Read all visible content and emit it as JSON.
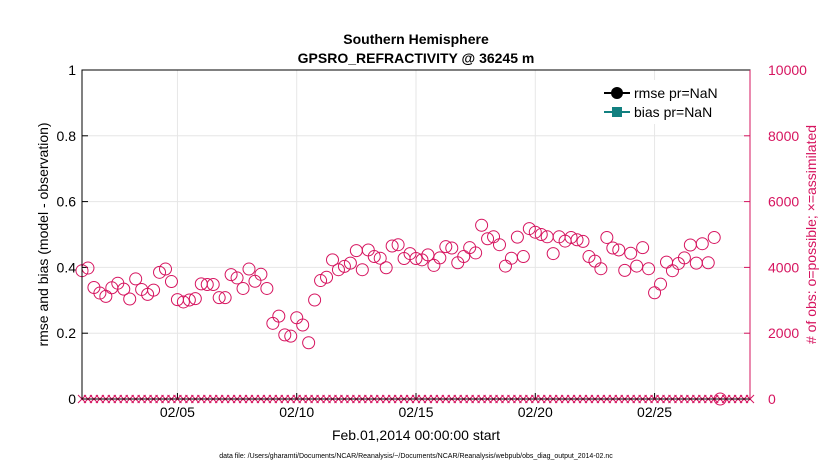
{
  "chart_data": {
    "type": "scatter",
    "title": "Southern Hemisphere",
    "subtitle": "GPSRO_REFRACTIVITY @ 36245 m",
    "xlabel": "Feb.01,2014 00:00:00 start",
    "ylabel": "rmse and bias (model - observation)",
    "ylabel_right": "# of obs: o=possible; ×=assimilated",
    "footnote": "data file: /Users/gharamti/Documents/NCAR/Reanalysis/~/Documents/NCAR/Reanalysis/webpub/obs_diag_output_2014-02.nc",
    "xlim": [
      1.0,
      29.0
    ],
    "ylim": [
      0,
      1
    ],
    "ylim_right": [
      0,
      10000
    ],
    "x_ticks": [
      {
        "value": 5,
        "label": "02/05"
      },
      {
        "value": 10,
        "label": "02/10"
      },
      {
        "value": 15,
        "label": "02/15"
      },
      {
        "value": 20,
        "label": "02/20"
      },
      {
        "value": 25,
        "label": "02/25"
      }
    ],
    "y_ticks": [
      {
        "value": 0,
        "label": "0"
      },
      {
        "value": 0.2,
        "label": "0.2"
      },
      {
        "value": 0.4,
        "label": "0.4"
      },
      {
        "value": 0.6,
        "label": "0.6"
      },
      {
        "value": 0.8,
        "label": "0.8"
      },
      {
        "value": 1,
        "label": "1"
      }
    ],
    "y_ticks_right": [
      {
        "value": 0,
        "label": "0"
      },
      {
        "value": 2000,
        "label": "2000"
      },
      {
        "value": 4000,
        "label": "4000"
      },
      {
        "value": 6000,
        "label": "6000"
      },
      {
        "value": 8000,
        "label": "8000"
      },
      {
        "value": 10000,
        "label": "10000"
      }
    ],
    "legend": [
      {
        "name": "rmse pr=NaN",
        "color": "#000000",
        "marker": "circle"
      },
      {
        "name": "bias pr=NaN",
        "color": "#128080",
        "marker": "square"
      }
    ],
    "legend_position": "top-right",
    "colors": {
      "obs": "#d6145f",
      "grid": "#e6e6e6",
      "axis": "#000000"
    },
    "possible_series": {
      "name": "possible",
      "x_start": 1.0,
      "x_step": 0.25,
      "values": [
        3900,
        3980,
        3390,
        3220,
        3120,
        3380,
        3520,
        3340,
        3040,
        3650,
        3330,
        3180,
        3310,
        3850,
        3950,
        3570,
        3020,
        2950,
        3010,
        3050,
        3500,
        3480,
        3480,
        3080,
        3080,
        3780,
        3680,
        3360,
        3950,
        3580,
        3790,
        3360,
        2300,
        2520,
        1950,
        1910,
        2470,
        2250,
        1710,
        3010,
        3600,
        3700,
        4230,
        3930,
        4030,
        4130,
        4510,
        3930,
        4530,
        4330,
        4280,
        3990,
        4650,
        4690,
        4270,
        4420,
        4270,
        4230,
        4380,
        4060,
        4290,
        4630,
        4590,
        4140,
        4330,
        4600,
        4440,
        5280,
        4870,
        4930,
        4690,
        4040,
        4280,
        4920,
        4330,
        5180,
        5070,
        5000,
        4930,
        4420,
        4930,
        4800,
        4910,
        4840,
        4790,
        4330,
        4190,
        3960,
        4910,
        4590,
        4530,
        3910,
        4430,
        4040,
        4600,
        3960,
        3230,
        3490,
        4160,
        3900,
        4120,
        4290,
        4680,
        4130,
        4720,
        4140,
        4910,
        0
      ]
    },
    "assimilated_series": {
      "name": "assimilated",
      "x_start": 1.0,
      "x_step": 0.25,
      "count": 113,
      "value": 0
    }
  }
}
